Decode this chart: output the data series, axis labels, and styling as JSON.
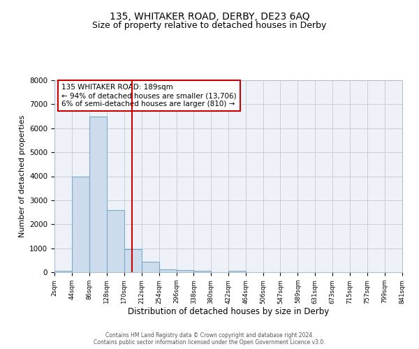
{
  "title": "135, WHITAKER ROAD, DERBY, DE23 6AQ",
  "subtitle": "Size of property relative to detached houses in Derby",
  "xlabel": "Distribution of detached houses by size in Derby",
  "ylabel": "Number of detached properties",
  "bin_edges": [
    2,
    44,
    86,
    128,
    170,
    212,
    254,
    296,
    338,
    380,
    422,
    464,
    506,
    547,
    589,
    631,
    673,
    715,
    757,
    799,
    841
  ],
  "bar_heights": [
    50,
    4000,
    6500,
    2600,
    950,
    450,
    130,
    80,
    50,
    0,
    50,
    0,
    0,
    0,
    0,
    0,
    0,
    0,
    0,
    0
  ],
  "bar_color": "#ccdcec",
  "bar_edgecolor": "#7aaac8",
  "reference_line_x": 189,
  "reference_line_color": "#cc0000",
  "ylim": [
    0,
    8000
  ],
  "annotation_text": "135 WHITAKER ROAD: 189sqm\n← 94% of detached houses are smaller (13,706)\n6% of semi-detached houses are larger (810) →",
  "annotation_box_edgecolor": "#cc0000",
  "annotation_box_facecolor": "#ffffff",
  "footer_line1": "Contains HM Land Registry data © Crown copyright and database right 2024.",
  "footer_line2": "Contains public sector information licensed under the Open Government Licence v3.0.",
  "background_color": "#ffffff",
  "plot_bg_color": "#eef2f8",
  "grid_color": "#c5cedc",
  "title_fontsize": 10,
  "subtitle_fontsize": 9,
  "tick_labels": [
    "2sqm",
    "44sqm",
    "86sqm",
    "128sqm",
    "170sqm",
    "212sqm",
    "254sqm",
    "296sqm",
    "338sqm",
    "380sqm",
    "422sqm",
    "464sqm",
    "506sqm",
    "547sqm",
    "589sqm",
    "631sqm",
    "673sqm",
    "715sqm",
    "757sqm",
    "799sqm",
    "841sqm"
  ]
}
